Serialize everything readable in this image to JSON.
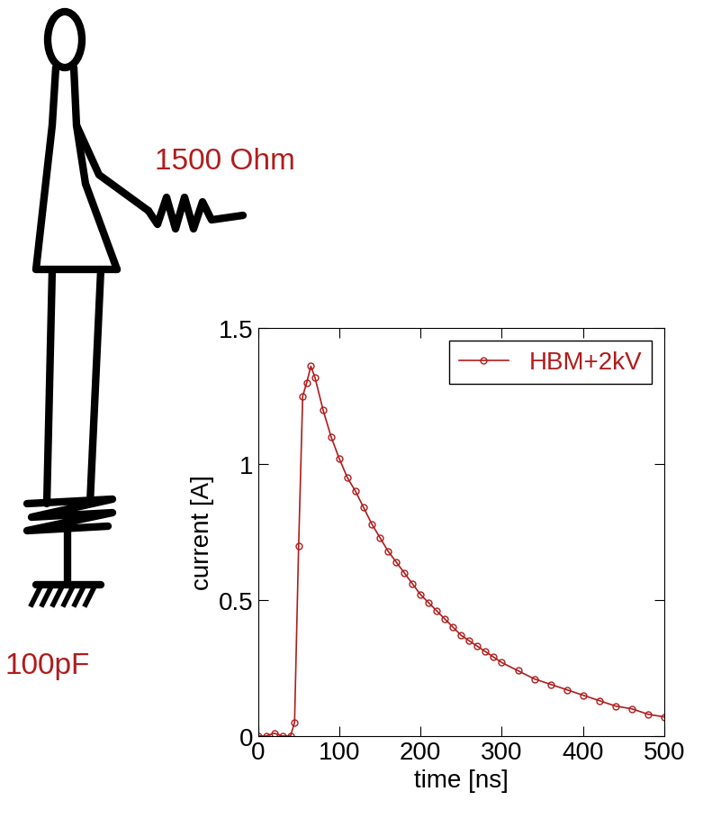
{
  "chart_data": {
    "type": "line",
    "annotations": [
      "1500 Ohm",
      "100pF"
    ],
    "x_label": "time [ns]",
    "y_label": "current [A]",
    "xlim": [
      0,
      500
    ],
    "xticks": [
      0,
      100,
      200,
      300,
      400,
      500
    ],
    "ylim": [
      0,
      1.5
    ],
    "yticks": [
      0,
      0.5,
      1,
      1.5
    ],
    "legend": "upper right",
    "grid": false,
    "series": [
      {
        "name": "HBM+2kV",
        "color": "#b01c1c",
        "marker": "circle",
        "line_style": "solid",
        "x": [
          0,
          10,
          20,
          30,
          40,
          45,
          50,
          55,
          60,
          65,
          70,
          80,
          90,
          100,
          110,
          120,
          130,
          140,
          150,
          160,
          170,
          180,
          190,
          200,
          210,
          220,
          230,
          240,
          250,
          260,
          270,
          280,
          290,
          300,
          320,
          340,
          360,
          380,
          400,
          420,
          440,
          460,
          480,
          500
        ],
        "values": [
          0,
          0,
          0.01,
          0,
          0,
          0.05,
          0.7,
          1.25,
          1.3,
          1.36,
          1.32,
          1.2,
          1.1,
          1.02,
          0.95,
          0.9,
          0.84,
          0.78,
          0.73,
          0.68,
          0.64,
          0.6,
          0.56,
          0.52,
          0.49,
          0.46,
          0.43,
          0.4,
          0.37,
          0.35,
          0.33,
          0.31,
          0.29,
          0.27,
          0.24,
          0.21,
          0.19,
          0.17,
          0.15,
          0.13,
          0.11,
          0.1,
          0.08,
          0.07
        ]
      }
    ]
  }
}
